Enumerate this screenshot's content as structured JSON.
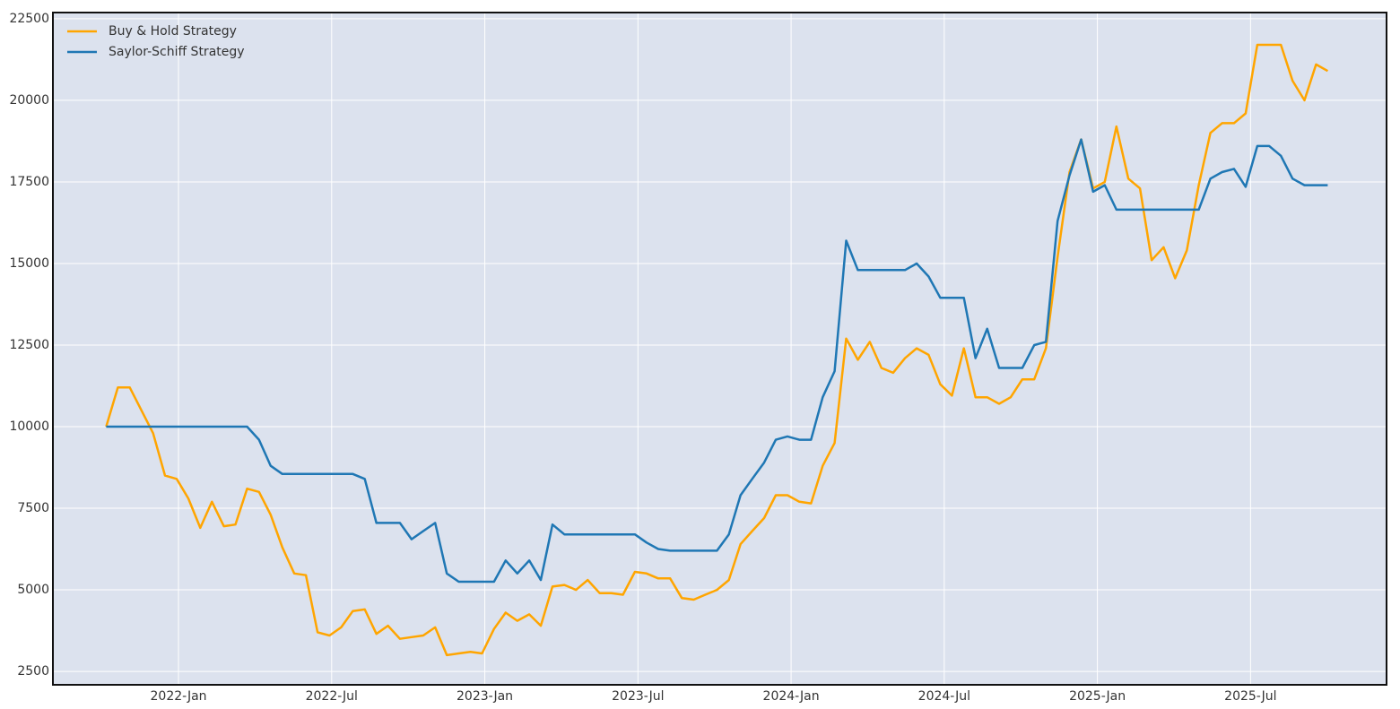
{
  "chart_data": {
    "type": "line",
    "x": [
      2021.764,
      2021.802,
      2021.841,
      2021.879,
      2021.917,
      2021.956,
      2021.994,
      2022.032,
      2022.071,
      2022.109,
      2022.148,
      2022.186,
      2022.224,
      2022.263,
      2022.301,
      2022.339,
      2022.378,
      2022.416,
      2022.454,
      2022.493,
      2022.531,
      2022.569,
      2022.608,
      2022.646,
      2022.684,
      2022.723,
      2022.761,
      2022.799,
      2022.838,
      2022.876,
      2022.915,
      2022.953,
      2022.991,
      2023.03,
      2023.068,
      2023.106,
      2023.145,
      2023.183,
      2023.221,
      2023.26,
      2023.298,
      2023.336,
      2023.375,
      2023.413,
      2023.451,
      2023.49,
      2023.528,
      2023.566,
      2023.605,
      2023.643,
      2023.682,
      2023.72,
      2023.758,
      2023.797,
      2023.835,
      2023.873,
      2023.912,
      2023.95,
      2023.988,
      2024.027,
      2024.065,
      2024.103,
      2024.142,
      2024.18,
      2024.218,
      2024.257,
      2024.295,
      2024.333,
      2024.372,
      2024.41,
      2024.449,
      2024.487,
      2024.525,
      2024.564,
      2024.602,
      2024.64,
      2024.679,
      2024.717,
      2024.755,
      2024.794,
      2024.832,
      2024.87,
      2024.909,
      2024.947,
      2024.986,
      2025.024,
      2025.062,
      2025.101,
      2025.139,
      2025.177,
      2025.216,
      2025.254,
      2025.292,
      2025.331,
      2025.369,
      2025.407,
      2025.446,
      2025.484,
      2025.522,
      2025.561,
      2025.599,
      2025.637,
      2025.676,
      2025.714,
      2025.752
    ],
    "series": [
      {
        "name": "Buy & Hold Strategy",
        "color": "#ffa500",
        "values": [
          10000,
          11200,
          11200,
          10500,
          9800,
          8500,
          8400,
          7800,
          6900,
          7700,
          6950,
          7000,
          8100,
          8000,
          7300,
          6300,
          5500,
          5450,
          3700,
          3600,
          3850,
          4350,
          4400,
          3650,
          3900,
          3500,
          3550,
          3600,
          3850,
          3000,
          3050,
          3100,
          3050,
          3800,
          4300,
          4050,
          4250,
          3900,
          5100,
          5150,
          5000,
          5300,
          4900,
          4900,
          4850,
          5550,
          5500,
          5350,
          5350,
          4750,
          4700,
          4850,
          5000,
          5300,
          6400,
          6800,
          7200,
          7900,
          7900,
          7700,
          7650,
          8800,
          9500,
          12700,
          12050,
          12600,
          11800,
          11650,
          12100,
          12400,
          12200,
          11300,
          10950,
          12400,
          10900,
          10900,
          10700,
          10900,
          11450,
          11450,
          12400,
          15200,
          17800,
          18800,
          17300,
          17500,
          19200,
          17600,
          17300,
          15100,
          15500,
          14550,
          15400,
          17400,
          19000,
          19300,
          19300,
          19600,
          21700,
          21700,
          21700,
          20600,
          20000,
          21100,
          20900
        ]
      },
      {
        "name": "Saylor-Schiff Strategy",
        "color": "#1f77b4",
        "values": [
          10000,
          10000,
          10000,
          10000,
          10000,
          10000,
          10000,
          10000,
          10000,
          10000,
          10000,
          10000,
          10000,
          9600,
          8800,
          8550,
          8550,
          8550,
          8550,
          8550,
          8550,
          8550,
          8400,
          7050,
          7050,
          7050,
          6550,
          6800,
          7050,
          5500,
          5250,
          5250,
          5250,
          5250,
          5900,
          5500,
          5900,
          5300,
          7000,
          6700,
          6700,
          6700,
          6700,
          6700,
          6700,
          6700,
          6450,
          6250,
          6200,
          6200,
          6200,
          6200,
          6200,
          6700,
          7900,
          8400,
          8900,
          9600,
          9700,
          9600,
          9600,
          10900,
          11700,
          15700,
          14800,
          14800,
          14800,
          14800,
          14800,
          15000,
          14600,
          13950,
          13950,
          13950,
          12100,
          13000,
          11800,
          11800,
          11800,
          12500,
          12600,
          16300,
          17700,
          18800,
          17200,
          17400,
          16650,
          16650,
          16650,
          16650,
          16650,
          16650,
          16650,
          16650,
          17600,
          17800,
          17900,
          17350,
          18600,
          18600,
          18300,
          17600,
          17400,
          17400,
          17400
        ]
      }
    ],
    "xlim": [
      2021.59,
      2025.944
    ],
    "xticks": [
      {
        "value": 2022,
        "label": "2022-Jan"
      },
      {
        "value": 2022.5,
        "label": "2022-Jul"
      },
      {
        "value": 2023,
        "label": "2023-Jan"
      },
      {
        "value": 2023.5,
        "label": "2023-Jul"
      },
      {
        "value": 2024,
        "label": "2024-Jan"
      },
      {
        "value": 2024.5,
        "label": "2024-Jul"
      },
      {
        "value": 2025,
        "label": "2025-Jan"
      },
      {
        "value": 2025.5,
        "label": "2025-Jul"
      }
    ],
    "ylim": [
      2090,
      22690
    ],
    "yticks": [
      2500,
      5000,
      7500,
      10000,
      12500,
      15000,
      17500,
      20000,
      22500
    ],
    "grid": true,
    "legend": "upper-left"
  }
}
